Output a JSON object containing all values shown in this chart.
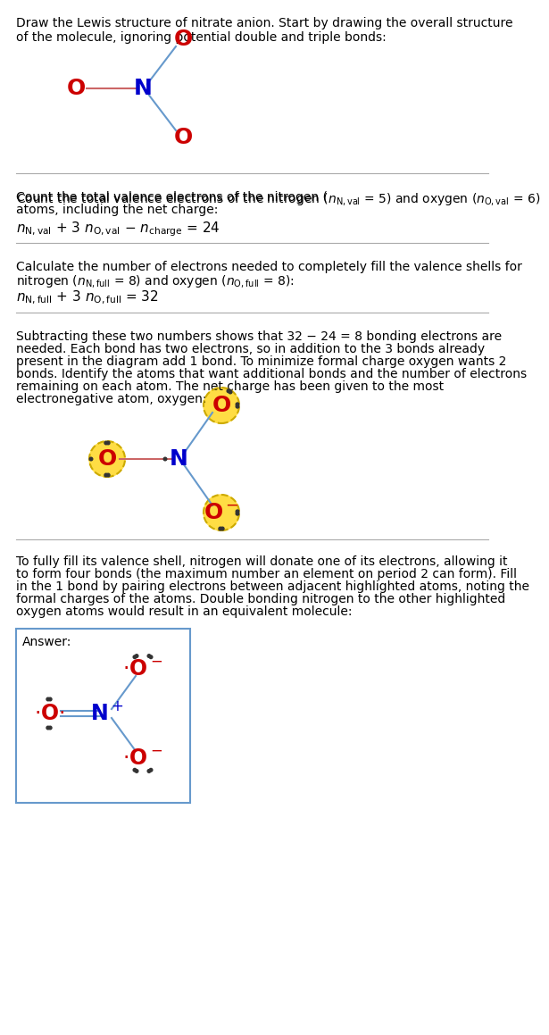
{
  "title_text": "Draw the Lewis structure of nitrate anion. Start by drawing the overall structure\nof the molecule, ignoring potential double and triple bonds:",
  "section1_text": "Count the total valence electrons of the nitrogen ($n_{\\mathrm{N,val}}$ = 5) and oxygen ($n_{\\mathrm{O,val}}$ = 6)\natoms, including the net charge:",
  "section1_formula": "$n_{\\mathrm{N,val}}$ + 3 $n_{\\mathrm{O,val}}$ − $n_{\\mathrm{charge}}$ = 24",
  "section2_text": "Calculate the number of electrons needed to completely fill the valence shells for\nnitrogen ($n_{\\mathrm{N,full}}$ = 8) and oxygen ($n_{\\mathrm{O,full}}$ = 8):",
  "section2_formula": "$n_{\\mathrm{N,full}}$ + 3 $n_{\\mathrm{O,full}}$ = 32",
  "section3_text": "Subtracting these two numbers shows that 32 − 24 = 8 bonding electrons are\nneeded. Each bond has two electrons, so in addition to the 3 bonds already\npresent in the diagram add 1 bond. To minimize formal charge oxygen wants 2\nbonds. Identify the atoms that want additional bonds and the number of electrons\nremaining on each atom. The net charge has been given to the most\nelectronegative atom, oxygen:",
  "section4_text": "To fully fill its valence shell, nitrogen will donate one of its electrons, allowing it\nto form four bonds (the maximum number an element on period 2 can form). Fill\nin the 1 bond by pairing electrons between adjacent highlighted atoms, noting the\nformal charges of the atoms. Double bonding nitrogen to the other highlighted\noxygen atoms would result in an equivalent molecule:",
  "answer_label": "Answer:",
  "bg_color": "#ffffff",
  "text_color": "#000000",
  "O_color": "#cc0000",
  "N_color": "#0000cc",
  "bond_color_blue": "#6699cc",
  "bond_color_red": "#cc6666",
  "highlight_color": "#ffdd44",
  "highlight_border": "#ccaa00",
  "answer_border": "#6699cc",
  "lone_pair_color": "#333333"
}
